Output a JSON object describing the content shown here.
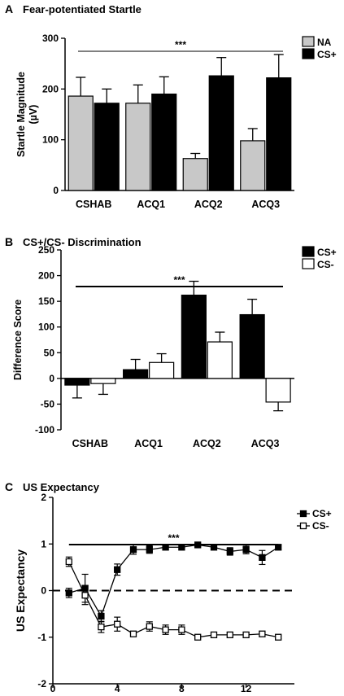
{
  "chart_data": [
    {
      "panel": "A",
      "type": "bar",
      "title": "Fear-potentiated Startle",
      "ylabel": "Startle Magnitude",
      "ylabel_unit": "(µV)",
      "ylim": [
        0,
        300
      ],
      "yticks": [
        0,
        100,
        200,
        300
      ],
      "categories": [
        "CSHAB",
        "ACQ1",
        "ACQ2",
        "ACQ3"
      ],
      "series": [
        {
          "name": "NA",
          "color": "#c8c8c8",
          "values": [
            186,
            172,
            63,
            98
          ],
          "errors": [
            37,
            36,
            10,
            24
          ]
        },
        {
          "name": "CS+",
          "color": "#000000",
          "values": [
            172,
            190,
            226,
            222
          ],
          "errors": [
            28,
            34,
            36,
            46
          ]
        }
      ],
      "significance": "***",
      "legend_position": "top-right"
    },
    {
      "panel": "B",
      "type": "bar",
      "title": "CS+/CS- Discrimination",
      "ylabel": "Difference Score",
      "ylim": [
        -100,
        250
      ],
      "yticks": [
        -100,
        -50,
        0,
        50,
        100,
        150,
        200,
        250
      ],
      "categories": [
        "CSHAB",
        "ACQ1",
        "ACQ2",
        "ACQ3"
      ],
      "series": [
        {
          "name": "CS+",
          "color": "#000000",
          "values": [
            -13,
            17,
            162,
            124
          ],
          "errors": [
            25,
            20,
            27,
            30
          ]
        },
        {
          "name": "CS-",
          "color": "#ffffff",
          "values": [
            -10,
            31,
            71,
            -46
          ],
          "errors": [
            21,
            17,
            19,
            17
          ]
        }
      ],
      "significance": "***",
      "legend_position": "top-right"
    },
    {
      "panel": "C",
      "type": "line",
      "title": "US Expectancy",
      "ylabel": "US Expectancy",
      "ylim": [
        -2,
        2
      ],
      "yticks": [
        -2,
        -1,
        0,
        1,
        2
      ],
      "xlim": [
        0,
        15
      ],
      "xticks": [
        0,
        4,
        8,
        12
      ],
      "x": [
        1,
        2,
        3,
        4,
        5,
        6,
        7,
        8,
        9,
        10,
        11,
        12,
        13,
        14
      ],
      "series": [
        {
          "name": "CS+",
          "marker": "filled-square",
          "values": [
            -0.05,
            0.05,
            -0.55,
            0.45,
            0.88,
            0.88,
            0.93,
            0.93,
            0.98,
            0.93,
            0.84,
            0.88,
            0.71,
            0.93
          ],
          "errors": [
            0.1,
            0.3,
            0.12,
            0.12,
            0.1,
            0.08,
            0.05,
            0.05,
            0.03,
            0.04,
            0.08,
            0.09,
            0.15,
            0.05
          ]
        },
        {
          "name": "CS-",
          "marker": "open-square",
          "values": [
            0.62,
            -0.1,
            -0.78,
            -0.72,
            -0.93,
            -0.77,
            -0.84,
            -0.84,
            -1.0,
            -0.95,
            -0.95,
            -0.95,
            -0.93,
            -1.0
          ],
          "errors": [
            0.1,
            0.2,
            0.12,
            0.15,
            0.05,
            0.1,
            0.1,
            0.1,
            0.03,
            0.04,
            0.04,
            0.04,
            0.05,
            0.03
          ]
        }
      ],
      "reference_line": {
        "y": 0,
        "style": "dashed"
      },
      "significance": "***",
      "legend_position": "top-right"
    }
  ]
}
